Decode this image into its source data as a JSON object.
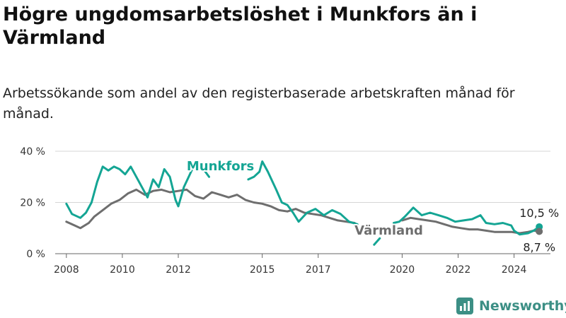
{
  "title": "Högre ungdomsarbetslöshet i Munkfors än i Värmland",
  "subtitle": "Arbetssökande som andel av den registerbaserade arbetskraften månad för månad.",
  "brand": {
    "name": "Newsworthy",
    "icon": "bar-chart-logo-icon",
    "color": "#3c8f85"
  },
  "chart_data": {
    "type": "line",
    "ylim": [
      0,
      40
    ],
    "yticks": [
      0,
      20,
      40
    ],
    "ytick_labels": [
      "0 %",
      "20 %",
      "40 %"
    ],
    "xticks": [
      2008,
      2010,
      2012,
      2015,
      2017,
      2020,
      2022,
      2024
    ],
    "xtick_labels": [
      "2008",
      "2010",
      "2012",
      "2015",
      "2017",
      "2020",
      "2022",
      "2024"
    ],
    "grid": true,
    "series": [
      {
        "name": "Munkfors",
        "color": "#14a594",
        "last_label": "10,5 %",
        "points": [
          [
            2008.0,
            19.5
          ],
          [
            2008.2,
            15.5
          ],
          [
            2008.5,
            14
          ],
          [
            2008.7,
            16
          ],
          [
            2008.9,
            20
          ],
          [
            2009.1,
            28
          ],
          [
            2009.3,
            34
          ],
          [
            2009.5,
            32.5
          ],
          [
            2009.7,
            34
          ],
          [
            2009.9,
            33
          ],
          [
            2010.1,
            31
          ],
          [
            2010.3,
            34
          ],
          [
            2010.5,
            30
          ],
          [
            2010.7,
            26
          ],
          [
            2010.9,
            22
          ],
          [
            2011.1,
            29
          ],
          [
            2011.3,
            26
          ],
          [
            2011.5,
            33
          ],
          [
            2011.7,
            30
          ],
          [
            2011.9,
            21
          ],
          [
            2012.0,
            18.5
          ],
          [
            2012.2,
            26
          ],
          [
            2012.5,
            33
          ],
          [
            2012.7,
            36
          ],
          [
            2012.9,
            33
          ],
          [
            2013.1,
            30
          ],
          null,
          [
            2014.5,
            29
          ],
          [
            2014.7,
            30
          ],
          [
            2014.9,
            32
          ],
          [
            2015.0,
            36
          ],
          [
            2015.2,
            32
          ],
          [
            2015.5,
            25
          ],
          [
            2015.7,
            20
          ],
          [
            2015.9,
            19
          ],
          [
            2016.1,
            16
          ],
          [
            2016.3,
            12.5
          ],
          [
            2016.6,
            16
          ],
          [
            2016.9,
            17.5
          ],
          [
            2017.2,
            15
          ],
          [
            2017.5,
            17
          ],
          [
            2017.8,
            15.5
          ],
          [
            2018.1,
            12.5
          ],
          [
            2018.4,
            11.5
          ],
          null,
          [
            2019.0,
            3.5
          ],
          [
            2019.2,
            6
          ],
          null,
          [
            2019.7,
            12
          ],
          [
            2019.9,
            12.5
          ],
          [
            2020.1,
            14.5
          ],
          [
            2020.4,
            18
          ],
          [
            2020.7,
            15
          ],
          [
            2021.0,
            16
          ],
          [
            2021.3,
            15
          ],
          [
            2021.6,
            14
          ],
          [
            2021.9,
            12.5
          ],
          [
            2022.2,
            13
          ],
          [
            2022.5,
            13.5
          ],
          [
            2022.8,
            15
          ],
          [
            2023.0,
            12
          ],
          [
            2023.3,
            11.5
          ],
          [
            2023.6,
            12
          ],
          [
            2023.9,
            11
          ],
          [
            2024.0,
            9
          ],
          [
            2024.2,
            7.5
          ],
          [
            2024.5,
            8
          ],
          [
            2024.7,
            9
          ],
          [
            2024.9,
            10.5
          ]
        ]
      },
      {
        "name": "Värmland",
        "color": "#6e6e6e",
        "last_label": "8,7 %",
        "points": [
          [
            2008.0,
            12.5
          ],
          [
            2008.3,
            11
          ],
          [
            2008.5,
            10
          ],
          [
            2008.8,
            12
          ],
          [
            2009.0,
            14.5
          ],
          [
            2009.3,
            17
          ],
          [
            2009.6,
            19.5
          ],
          [
            2009.9,
            21
          ],
          [
            2010.2,
            23.5
          ],
          [
            2010.5,
            25
          ],
          [
            2010.8,
            23
          ],
          [
            2011.1,
            24.5
          ],
          [
            2011.4,
            25
          ],
          [
            2011.7,
            24
          ],
          [
            2012.0,
            24.5
          ],
          [
            2012.3,
            25
          ],
          [
            2012.6,
            22.5
          ],
          [
            2012.9,
            21.5
          ],
          [
            2013.2,
            24
          ],
          [
            2013.5,
            23
          ],
          [
            2013.8,
            22
          ],
          [
            2014.1,
            23
          ],
          [
            2014.4,
            21
          ],
          [
            2014.7,
            20
          ],
          [
            2015.0,
            19.5
          ],
          [
            2015.3,
            18.5
          ],
          [
            2015.6,
            17
          ],
          [
            2015.9,
            16.5
          ],
          [
            2016.2,
            17.5
          ],
          [
            2016.5,
            16
          ],
          [
            2016.8,
            15.5
          ],
          [
            2017.1,
            15
          ],
          [
            2017.4,
            14
          ],
          [
            2017.7,
            13
          ],
          [
            2018.0,
            12.5
          ],
          [
            2018.3,
            12
          ],
          null,
          [
            2020.0,
            13
          ],
          [
            2020.3,
            14
          ],
          [
            2020.6,
            13.5
          ],
          [
            2020.9,
            13
          ],
          [
            2021.2,
            12.5
          ],
          [
            2021.5,
            11.5
          ],
          [
            2021.8,
            10.5
          ],
          [
            2022.1,
            10
          ],
          [
            2022.4,
            9.5
          ],
          [
            2022.7,
            9.5
          ],
          [
            2023.0,
            9
          ],
          [
            2023.3,
            8.5
          ],
          [
            2023.6,
            8.5
          ],
          [
            2023.9,
            8.5
          ],
          [
            2024.2,
            8
          ],
          [
            2024.5,
            8.5
          ],
          [
            2024.7,
            9
          ],
          [
            2024.9,
            8.7
          ]
        ]
      }
    ]
  }
}
